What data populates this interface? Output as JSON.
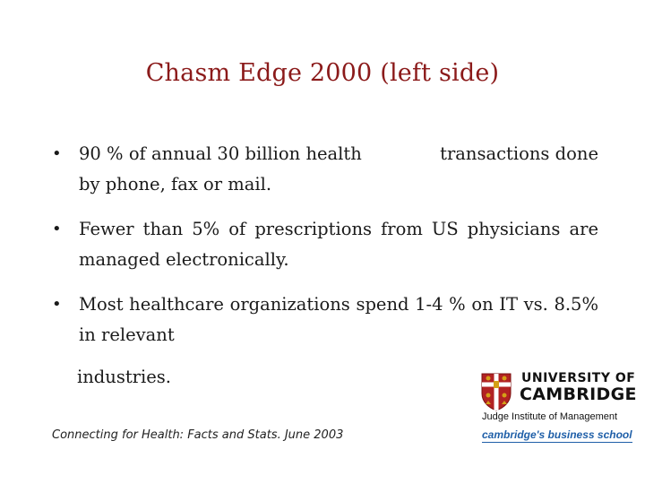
{
  "slide": {
    "title": "Chasm Edge 2000 (left side)",
    "bullets": [
      "90 % of annual 30 billion health              transactions done by phone, fax or mail.",
      "Fewer than 5% of prescriptions from US physicians are managed electronically.",
      "Most healthcare organizations spend 1-4 % on IT vs. 8.5% in relevant"
    ],
    "continuation": "industries.",
    "citation": "Connecting for Health: Facts and Stats. June 2003"
  },
  "logo": {
    "line1": "UNIVERSITY OF",
    "line2": "CAMBRIDGE",
    "line3": "Judge Institute of Management",
    "line4": "cambridge's business school"
  },
  "colors": {
    "title": "#8b1a1a",
    "crest_red": "#b22222",
    "crest_gold": "#d4a017",
    "tagline_blue": "#1f5fa8"
  }
}
